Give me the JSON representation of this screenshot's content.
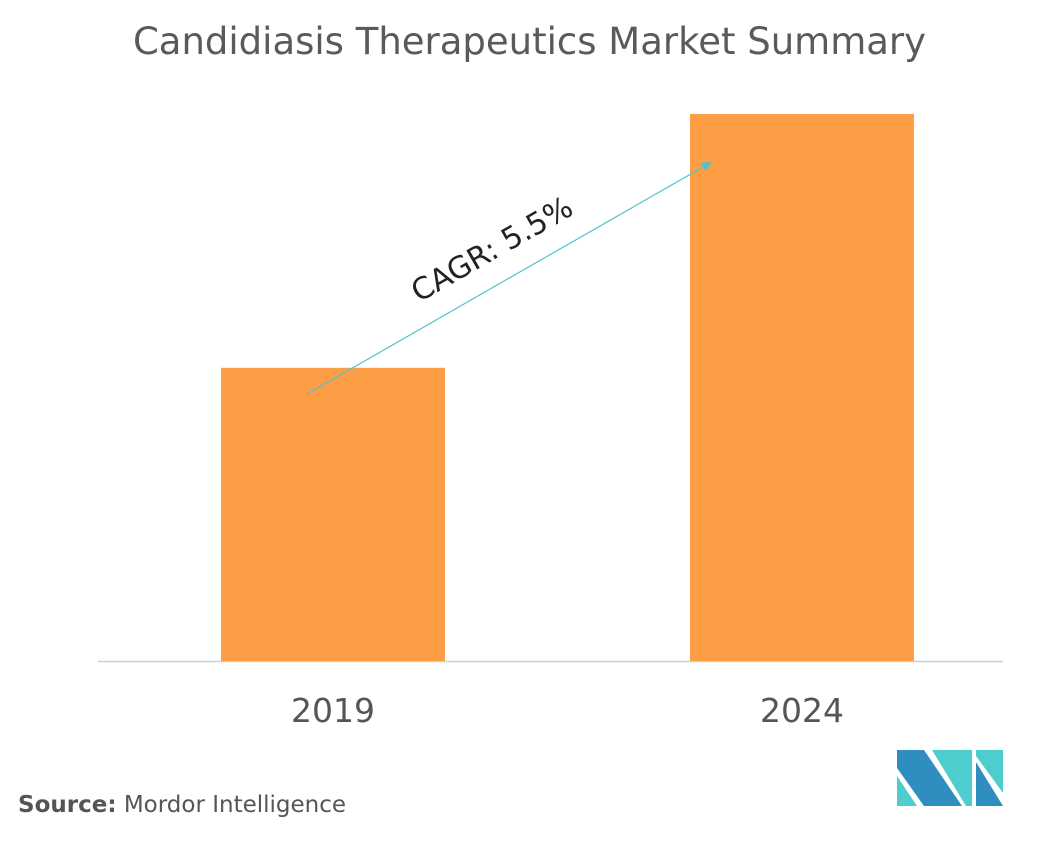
{
  "chart_data": {
    "type": "bar",
    "title": "Candidiasis Therapeutics Market Summary",
    "categories": [
      "2019",
      "2024"
    ],
    "values": [
      53.6,
      100
    ],
    "value_note": "relative scale, no axis values shown",
    "xlabel": "",
    "ylabel": "",
    "ylim": [
      0,
      100
    ],
    "grid": false,
    "bar_color": "#FD9E46",
    "annotation": {
      "text": "CAGR: 5.5%",
      "arrow_color": "#4FC4CB"
    }
  },
  "source": {
    "label": "Source:",
    "text": "Mordor Intelligence"
  },
  "logo": {
    "colors": [
      "#2E8EC0",
      "#4DCDCD"
    ]
  }
}
